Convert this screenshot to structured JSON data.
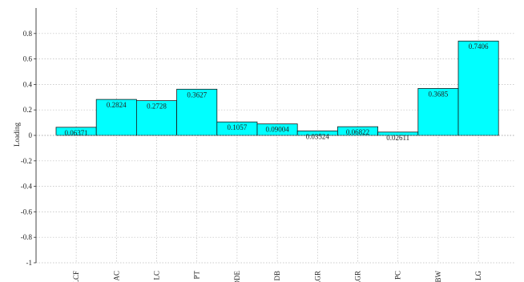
{
  "chart_data": {
    "type": "bar",
    "title": "",
    "xlabel": "",
    "ylabel": "Loading",
    "ylim": [
      -1,
      1
    ],
    "yticks": [
      -1,
      -0.8,
      -0.6,
      -0.4,
      -0.2,
      0,
      0.2,
      0.4,
      0.6,
      0.8
    ],
    "ytick_labels": [
      "-1",
      "-0.8",
      "-0.6",
      "-0.4",
      "-0.2",
      "0",
      "0.2",
      "0.4",
      "0.6",
      "0.8"
    ],
    "grid": true,
    "legend": "none",
    "bar_color": "#00FFFF",
    "categories": [
      "LCF",
      "AC",
      "LC",
      "PT",
      "DDE",
      "DB",
      "AGR",
      "LGR",
      "PC",
      "BW",
      "LG"
    ],
    "values": [
      0.06371,
      0.2824,
      0.2728,
      0.3627,
      0.1057,
      0.09004,
      0.03524,
      0.06822,
      0.02611,
      0.3685,
      0.7406
    ],
    "value_labels": [
      "0.06371",
      "0.2824",
      "0.2728",
      "0.3627",
      "0.1057",
      "0.09004",
      "0.03524",
      "0.06822",
      "0.02611",
      "0.3685",
      "0.7406"
    ]
  }
}
